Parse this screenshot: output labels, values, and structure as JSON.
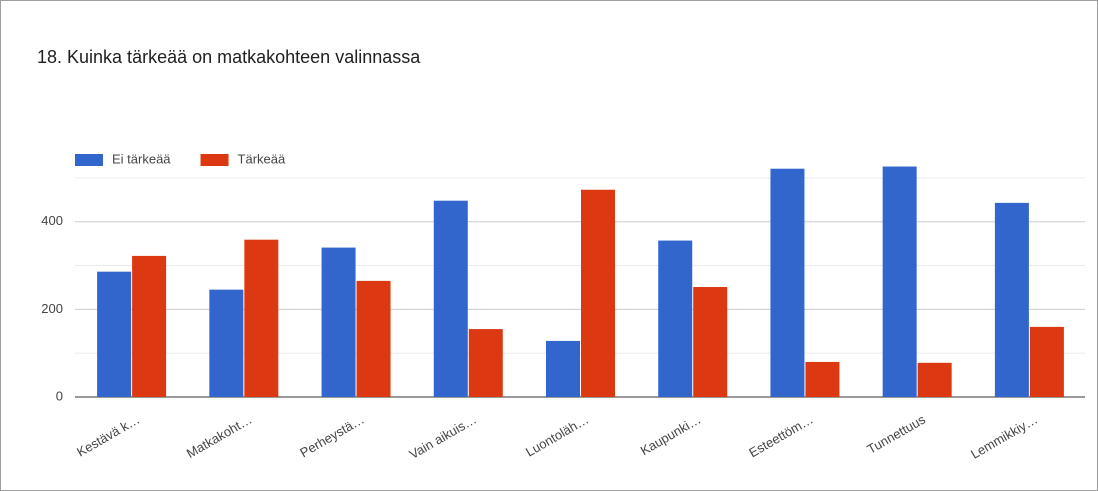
{
  "chart_data": {
    "type": "bar",
    "title": "18. Kuinka tärkeää on matkakohteen valinnassa",
    "categories": [
      "Kestävä k…",
      "Matkakoht…",
      "Perheystä…",
      "Vain aikuis…",
      "Luontoläh…",
      "Kaupunki…",
      "Esteettöm…",
      "Tunnettuus",
      "Lemmikkiy…"
    ],
    "series": [
      {
        "name": "Ei tärkeää",
        "color": "#3366cc",
        "values": [
          286,
          245,
          341,
          448,
          128,
          357,
          521,
          526,
          443
        ]
      },
      {
        "name": "Tärkeää",
        "color": "#dc3912",
        "values": [
          322,
          359,
          265,
          155,
          473,
          251,
          80,
          78,
          160
        ]
      }
    ],
    "ylim": [
      0,
      550
    ],
    "yticks": [
      0,
      200,
      400
    ],
    "minor_yticks": [
      100,
      300,
      500
    ],
    "grid": true,
    "legend": "top-left"
  }
}
